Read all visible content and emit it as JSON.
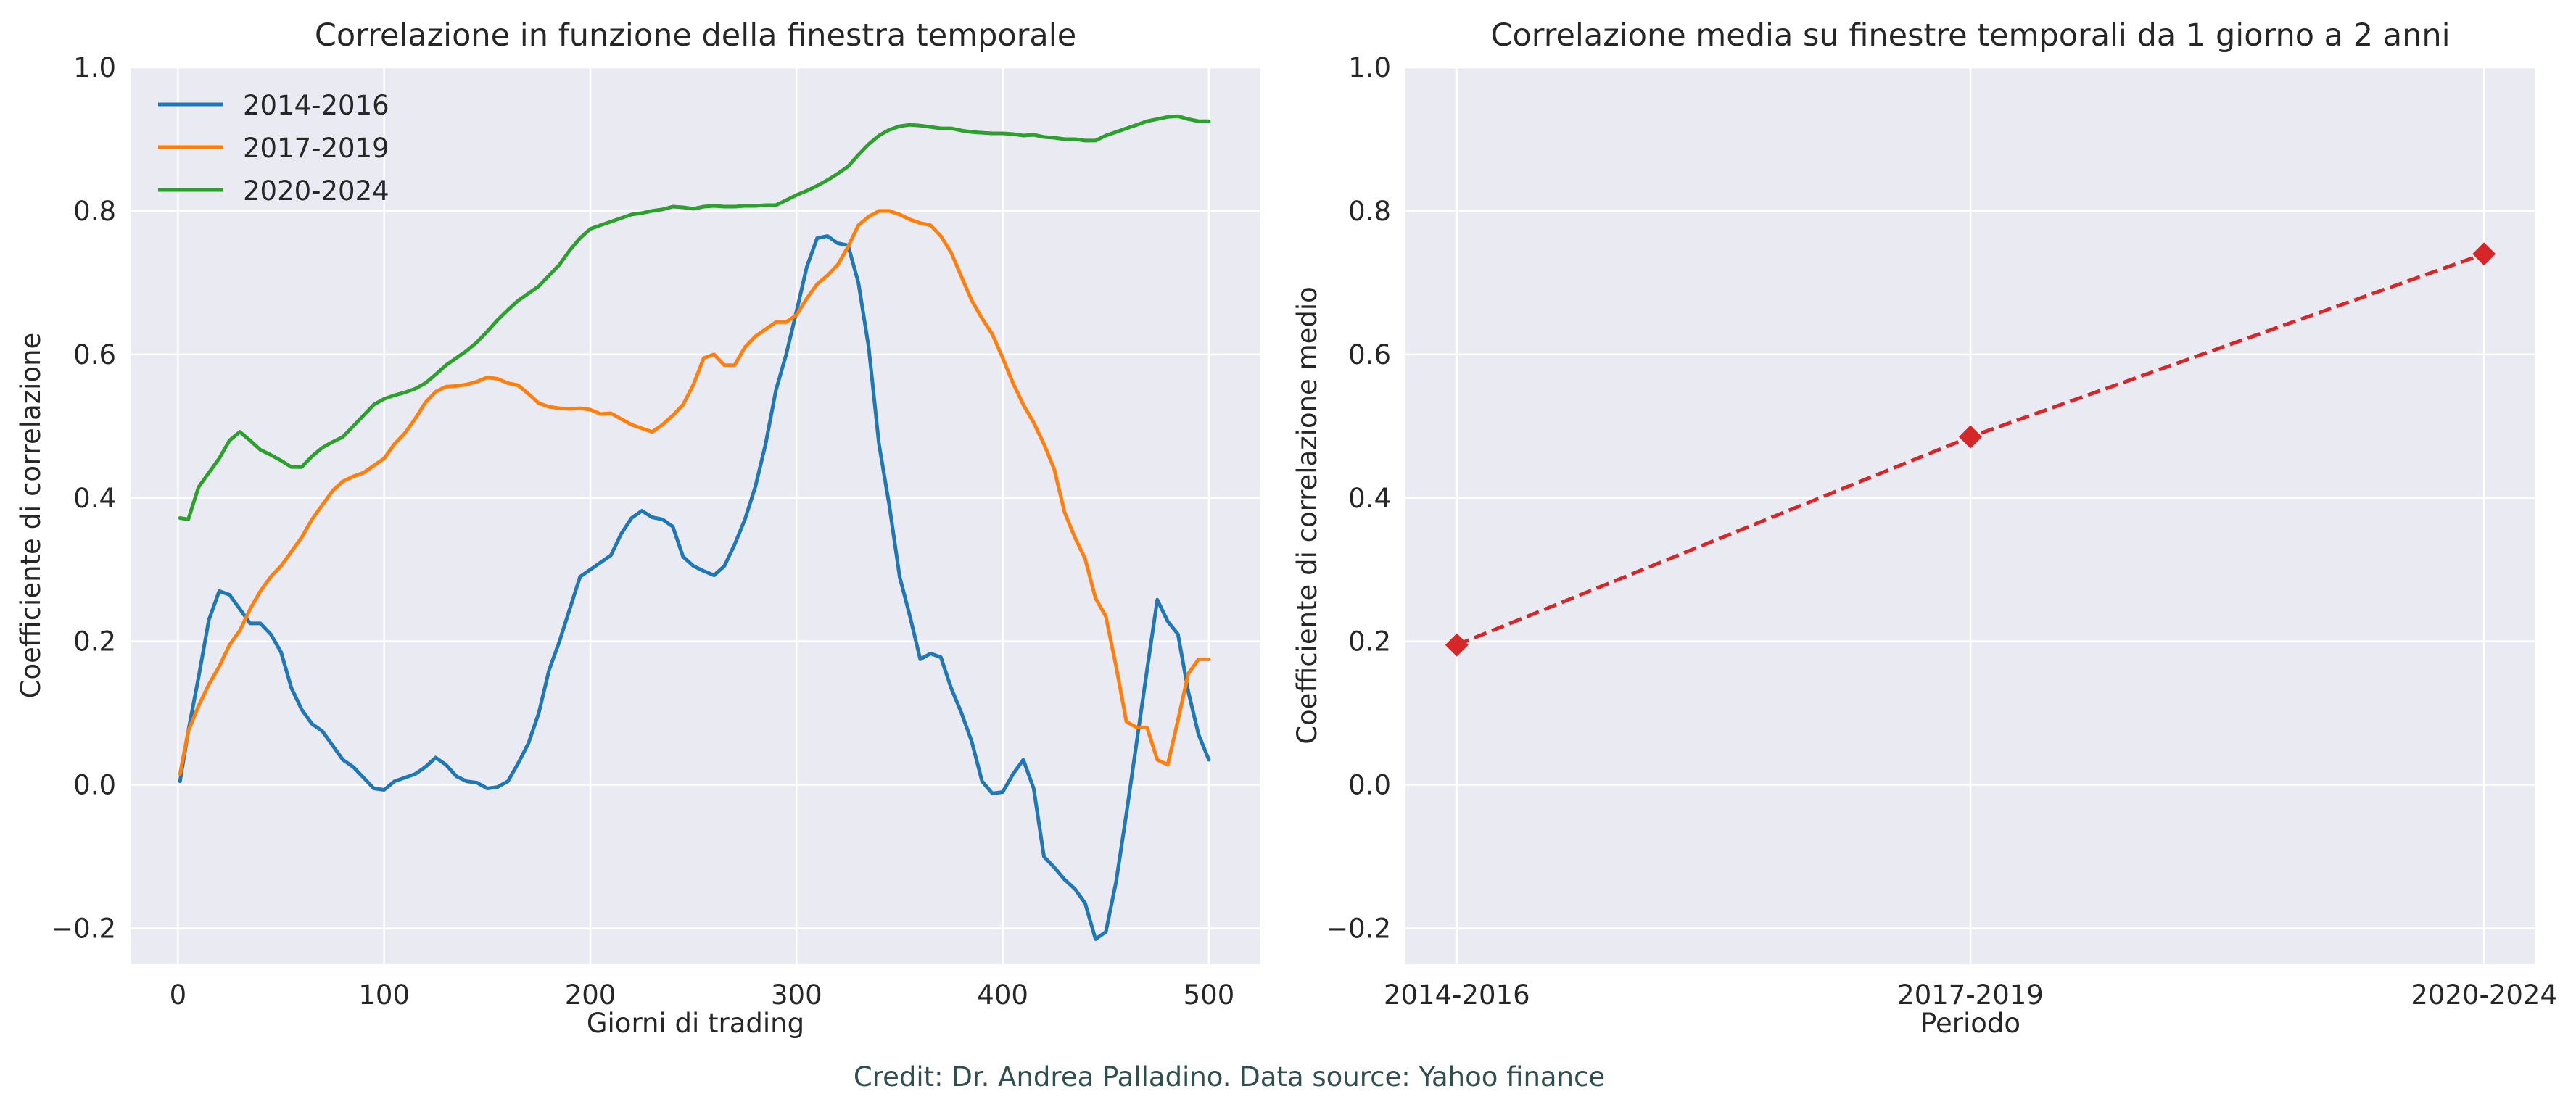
{
  "credit": "Credit: Dr. Andrea Palladino. Data source: Yahoo finance",
  "chart_data": [
    {
      "type": "line",
      "title": "Correlazione in funzione della finestra temporale",
      "xlabel": "Giorni di trading",
      "ylabel": "Coefficiente di correlazione",
      "xlim": [
        -23,
        525
      ],
      "ylim": [
        -0.25,
        1.0
      ],
      "xticks": [
        0,
        100,
        200,
        300,
        400,
        500
      ],
      "yticks": [
        -0.2,
        0.0,
        0.2,
        0.4,
        0.6,
        0.8,
        1.0
      ],
      "grid": true,
      "legend": "top-left",
      "series": [
        {
          "name": "2014-2016",
          "color": "#1f77b4",
          "x": [
            1,
            5,
            10,
            15,
            20,
            25,
            30,
            35,
            40,
            45,
            50,
            55,
            60,
            65,
            70,
            75,
            80,
            85,
            90,
            95,
            100,
            105,
            110,
            115,
            120,
            125,
            130,
            135,
            140,
            145,
            150,
            155,
            160,
            165,
            170,
            175,
            180,
            185,
            190,
            195,
            200,
            205,
            210,
            215,
            220,
            225,
            230,
            235,
            240,
            245,
            250,
            255,
            260,
            265,
            270,
            275,
            280,
            285,
            290,
            295,
            300,
            305,
            310,
            315,
            320,
            325,
            330,
            335,
            340,
            345,
            350,
            355,
            360,
            365,
            370,
            375,
            380,
            385,
            390,
            395,
            400,
            405,
            410,
            415,
            420,
            425,
            430,
            435,
            440,
            445,
            450,
            455,
            460,
            465,
            470,
            475,
            480,
            485,
            490,
            495,
            500
          ],
          "y": [
            0.005,
            0.075,
            0.15,
            0.23,
            0.27,
            0.265,
            0.245,
            0.225,
            0.225,
            0.21,
            0.185,
            0.135,
            0.105,
            0.085,
            0.075,
            0.055,
            0.035,
            0.025,
            0.01,
            -0.005,
            -0.007,
            0.005,
            0.01,
            0.015,
            0.025,
            0.038,
            0.028,
            0.012,
            0.005,
            0.003,
            -0.005,
            -0.003,
            0.005,
            0.03,
            0.058,
            0.1,
            0.16,
            0.2,
            0.245,
            0.29,
            0.3,
            0.31,
            0.32,
            0.35,
            0.372,
            0.382,
            0.373,
            0.37,
            0.36,
            0.318,
            0.305,
            0.298,
            0.292,
            0.305,
            0.335,
            0.37,
            0.415,
            0.475,
            0.55,
            0.6,
            0.66,
            0.722,
            0.762,
            0.765,
            0.755,
            0.752,
            0.7,
            0.61,
            0.475,
            0.39,
            0.29,
            0.235,
            0.175,
            0.183,
            0.178,
            0.135,
            0.1,
            0.06,
            0.005,
            -0.012,
            -0.01,
            0.015,
            0.035,
            -0.005,
            -0.1,
            -0.115,
            -0.132,
            -0.145,
            -0.165,
            -0.215,
            -0.205,
            -0.135,
            -0.04,
            0.06,
            0.16,
            0.258,
            0.228,
            0.21,
            0.13,
            0.07,
            0.035
          ]
        },
        {
          "name": "2017-2019",
          "color": "#ff7f0e",
          "x": [
            1,
            5,
            10,
            15,
            20,
            25,
            30,
            35,
            40,
            45,
            50,
            55,
            60,
            65,
            70,
            75,
            80,
            85,
            90,
            95,
            100,
            105,
            110,
            115,
            120,
            125,
            130,
            135,
            140,
            145,
            150,
            155,
            160,
            165,
            170,
            175,
            180,
            185,
            190,
            195,
            200,
            205,
            210,
            215,
            220,
            225,
            230,
            235,
            240,
            245,
            250,
            255,
            260,
            265,
            270,
            275,
            280,
            285,
            290,
            295,
            300,
            305,
            310,
            315,
            320,
            325,
            330,
            335,
            340,
            345,
            350,
            355,
            360,
            365,
            370,
            375,
            380,
            385,
            390,
            395,
            400,
            405,
            410,
            415,
            420,
            425,
            430,
            435,
            440,
            445,
            450,
            455,
            460,
            465,
            470,
            475,
            480,
            485,
            490,
            495,
            500
          ],
          "y": [
            0.015,
            0.075,
            0.11,
            0.14,
            0.165,
            0.195,
            0.215,
            0.245,
            0.27,
            0.29,
            0.305,
            0.325,
            0.345,
            0.37,
            0.39,
            0.41,
            0.423,
            0.43,
            0.435,
            0.445,
            0.455,
            0.475,
            0.49,
            0.51,
            0.533,
            0.548,
            0.555,
            0.556,
            0.558,
            0.562,
            0.568,
            0.566,
            0.56,
            0.557,
            0.545,
            0.532,
            0.527,
            0.525,
            0.524,
            0.525,
            0.523,
            0.517,
            0.518,
            0.51,
            0.502,
            0.497,
            0.492,
            0.502,
            0.515,
            0.53,
            0.558,
            0.595,
            0.6,
            0.585,
            0.585,
            0.61,
            0.625,
            0.635,
            0.645,
            0.645,
            0.655,
            0.678,
            0.698,
            0.71,
            0.725,
            0.75,
            0.78,
            0.792,
            0.8,
            0.8,
            0.795,
            0.788,
            0.783,
            0.78,
            0.765,
            0.742,
            0.708,
            0.675,
            0.65,
            0.628,
            0.595,
            0.56,
            0.53,
            0.505,
            0.475,
            0.44,
            0.38,
            0.345,
            0.315,
            0.26,
            0.235,
            0.165,
            0.088,
            0.08,
            0.08,
            0.035,
            0.028,
            0.09,
            0.155,
            0.175,
            0.175
          ]
        },
        {
          "name": "2020-2024",
          "color": "#2ca02c",
          "x": [
            1,
            5,
            10,
            15,
            20,
            25,
            30,
            35,
            40,
            45,
            50,
            55,
            60,
            65,
            70,
            75,
            80,
            85,
            90,
            95,
            100,
            105,
            110,
            115,
            120,
            125,
            130,
            135,
            140,
            145,
            150,
            155,
            160,
            165,
            170,
            175,
            180,
            185,
            190,
            195,
            200,
            205,
            210,
            215,
            220,
            225,
            230,
            235,
            240,
            245,
            250,
            255,
            260,
            265,
            270,
            275,
            280,
            285,
            290,
            295,
            300,
            305,
            310,
            315,
            320,
            325,
            330,
            335,
            340,
            345,
            350,
            355,
            360,
            365,
            370,
            375,
            380,
            385,
            390,
            395,
            400,
            405,
            410,
            415,
            420,
            425,
            430,
            435,
            440,
            445,
            450,
            455,
            460,
            465,
            470,
            475,
            480,
            485,
            490,
            495,
            500
          ],
          "y": [
            0.372,
            0.37,
            0.415,
            0.435,
            0.455,
            0.48,
            0.492,
            0.48,
            0.467,
            0.46,
            0.452,
            0.443,
            0.443,
            0.458,
            0.47,
            0.478,
            0.485,
            0.5,
            0.515,
            0.53,
            0.538,
            0.543,
            0.547,
            0.552,
            0.56,
            0.572,
            0.585,
            0.595,
            0.605,
            0.617,
            0.632,
            0.648,
            0.662,
            0.675,
            0.685,
            0.695,
            0.71,
            0.725,
            0.745,
            0.762,
            0.775,
            0.78,
            0.785,
            0.79,
            0.795,
            0.797,
            0.8,
            0.802,
            0.806,
            0.805,
            0.803,
            0.806,
            0.807,
            0.806,
            0.806,
            0.807,
            0.807,
            0.808,
            0.808,
            0.815,
            0.822,
            0.828,
            0.835,
            0.843,
            0.852,
            0.862,
            0.878,
            0.893,
            0.905,
            0.913,
            0.918,
            0.92,
            0.919,
            0.917,
            0.915,
            0.915,
            0.912,
            0.91,
            0.909,
            0.908,
            0.908,
            0.907,
            0.905,
            0.906,
            0.903,
            0.902,
            0.9,
            0.9,
            0.898,
            0.898,
            0.905,
            0.91,
            0.915,
            0.92,
            0.925,
            0.928,
            0.931,
            0.932,
            0.928,
            0.925,
            0.925
          ]
        }
      ]
    },
    {
      "type": "line",
      "title": "Correlazione media su finestre temporali da 1 giorno a 2 anni",
      "xlabel": "Periodo",
      "ylabel": "Coefficiente di correlazione medio",
      "categories": [
        "2014-2016",
        "2017-2019",
        "2020-2024"
      ],
      "values": [
        0.195,
        0.485,
        0.74
      ],
      "ylim": [
        -0.25,
        1.0
      ],
      "yticks": [
        -0.2,
        0.0,
        0.2,
        0.4,
        0.6,
        0.8,
        1.0
      ],
      "grid": true,
      "line_style": "dashed",
      "marker": "diamond",
      "color": "#d62728"
    }
  ]
}
